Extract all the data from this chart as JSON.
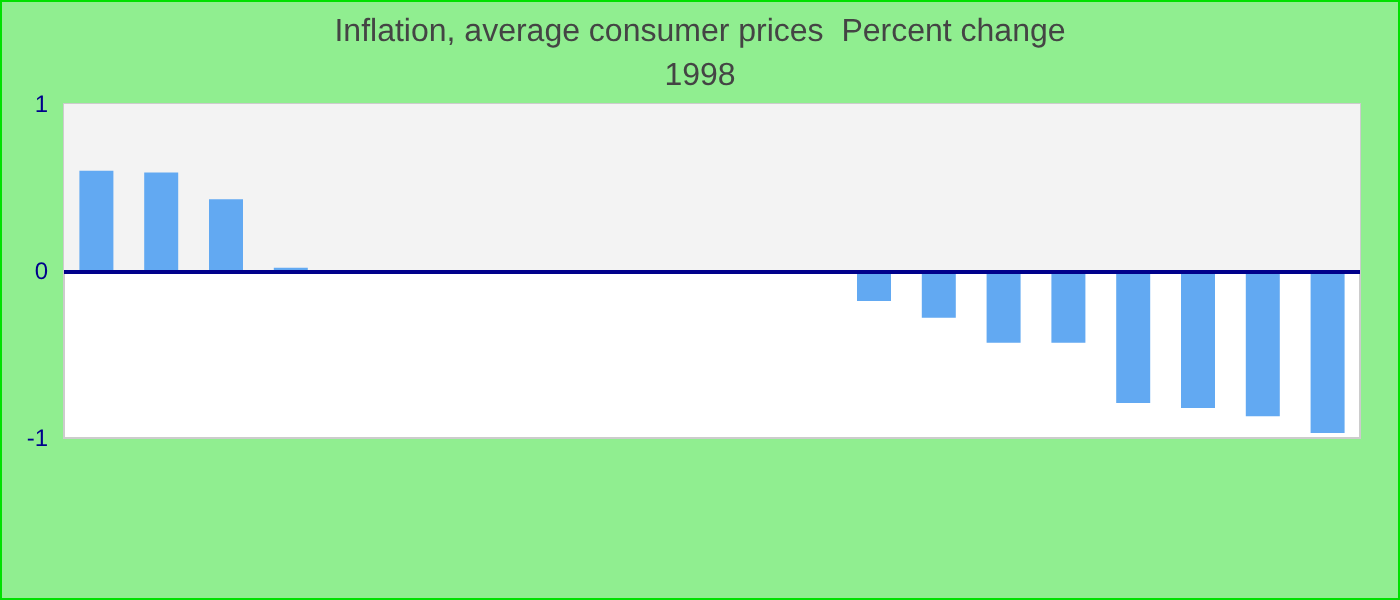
{
  "chart_data": {
    "type": "bar",
    "title": "Inflation, average consumer prices  Percent change",
    "subtitle": "1998",
    "categories": [
      null,
      null,
      null,
      null,
      null,
      null,
      null,
      null,
      null,
      null,
      null,
      null,
      null,
      null,
      null,
      null,
      null,
      null,
      null,
      null
    ],
    "values": [
      0.6,
      0.59,
      0.43,
      0.02,
      0,
      0,
      0,
      0,
      0,
      0,
      0,
      0,
      -0.18,
      -0.28,
      -0.43,
      -0.43,
      -0.79,
      -0.82,
      -0.87,
      -0.97
    ],
    "color": "#62a9f2",
    "ylim": [
      -1,
      1
    ],
    "yticks": [
      -1,
      0,
      1
    ],
    "grid": false,
    "bands": [
      {
        "axis": "y",
        "from": 0,
        "to": 1,
        "color": "#f3f3f3"
      }
    ],
    "ref_lines": [
      {
        "axis": "y",
        "value": 0,
        "color": "#00008b"
      }
    ]
  }
}
